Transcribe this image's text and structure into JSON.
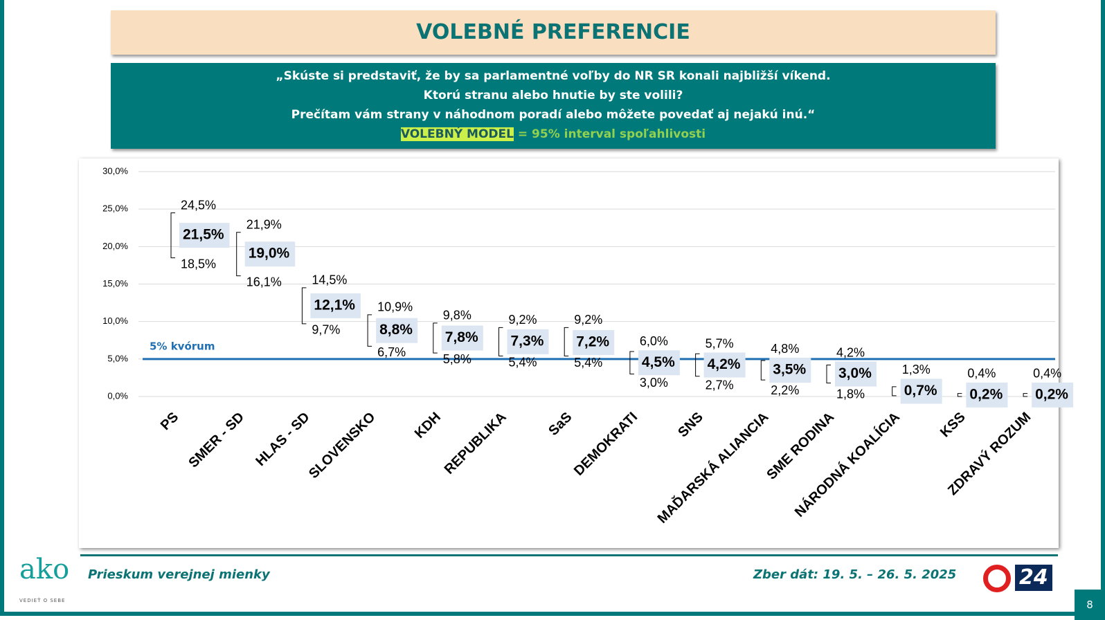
{
  "header": {
    "title": "VOLEBNÉ PREFERENCIE"
  },
  "question": {
    "lines": [
      "„Skúste si predstaviť, že by sa parlamentné voľby do NR SR konali najbližší víkend.",
      "Ktorú stranu alebo hnutie by ste volili?",
      "Prečítam vám strany v náhodnom poradí alebo môžete povedať aj nejakú inú.“"
    ],
    "model_label": "VOLEBNÝ MODEL",
    "model_text": "= 95% interval spoľahlivosti"
  },
  "chart_data": {
    "type": "interval",
    "categories": [
      "PS",
      "SMER - SD",
      "HLAS - SD",
      "SLOVENSKO",
      "KDH",
      "REPUBLIKA",
      "SaS",
      "DEMOKRATI",
      "SNS",
      "MAĎARSKÁ ALIANCIA",
      "SME RODINA",
      "NÁRODNÁ KOALÍCIA",
      "KSS",
      "ZDRAVÝ ROZUM"
    ],
    "values": [
      21.5,
      19.0,
      12.1,
      8.8,
      7.8,
      7.3,
      7.2,
      4.5,
      4.2,
      3.5,
      3.0,
      0.7,
      0.2,
      0.2
    ],
    "value_labels": [
      "21,5%",
      "19,0%",
      "12,1%",
      "8,8%",
      "7,8%",
      "7,3%",
      "7,2%",
      "4,5%",
      "4,2%",
      "3,5%",
      "3,0%",
      "0,7%",
      "0,2%",
      "0,2%"
    ],
    "upper": [
      24.5,
      21.9,
      14.5,
      10.9,
      9.8,
      9.2,
      9.2,
      6.0,
      5.7,
      4.8,
      4.2,
      1.3,
      0.4,
      0.4
    ],
    "upper_labels": [
      "24,5%",
      "21,9%",
      "14,5%",
      "10,9%",
      "9,8%",
      "9,2%",
      "9,2%",
      "6,0%",
      "5,7%",
      "4,8%",
      "4,2%",
      "1,3%",
      "0,4%",
      "0,4%"
    ],
    "lower": [
      18.5,
      16.1,
      9.7,
      6.7,
      5.8,
      5.4,
      5.4,
      3.0,
      2.7,
      2.2,
      1.8,
      0.1,
      0.0,
      0.0
    ],
    "lower_labels": [
      "18,5%",
      "16,1%",
      "9,7%",
      "6,7%",
      "5,8%",
      "5,4%",
      "5,4%",
      "3,0%",
      "2,7%",
      "2,2%",
      "1,8%",
      null,
      null,
      null
    ],
    "color": "#000000",
    "label_box_color": "#dce6f2",
    "threshold": {
      "value": 5,
      "label": "5% kvórum",
      "color": "#1f6fb2"
    },
    "ylim": [
      0,
      30
    ],
    "yticks": [
      {
        "value": 0,
        "label": "0,0%"
      },
      {
        "value": 5,
        "label": "5,0%"
      },
      {
        "value": 10,
        "label": "10,0%"
      },
      {
        "value": 15,
        "label": "15,0%"
      },
      {
        "value": 20,
        "label": "20,0%"
      },
      {
        "value": 25,
        "label": "25,0%"
      },
      {
        "value": 30,
        "label": "30,0%"
      }
    ],
    "grid": true
  },
  "footer": {
    "left": "Prieskum verejnej mienky",
    "right": "Zber dát: 19. 5. – 26. 5. 2025",
    "page": "8",
    "logo": "ako",
    "logo_sub": "VEDIEŤ O SEBE",
    "tv": "24"
  }
}
